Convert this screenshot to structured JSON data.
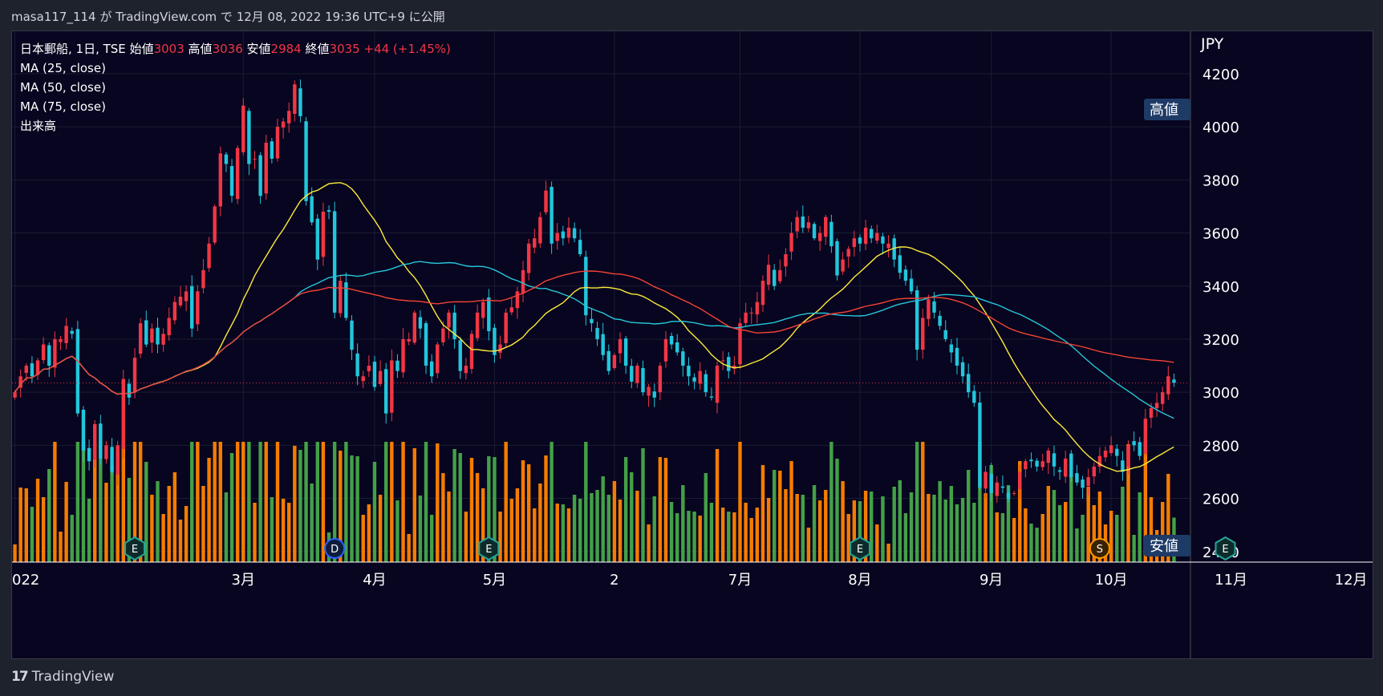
{
  "header": {
    "publish_line": "masa117_114 が TradingView.com で 12月 08, 2022 19:36 UTC+9 に公開"
  },
  "legend": {
    "symbol_line": "日本郵船, 1日, TSE",
    "open_label": "始値",
    "open_value": "3003",
    "high_label": "高値",
    "high_value": "3036",
    "low_label": "安値",
    "low_value": "2984",
    "close_label": "終値",
    "close_value": "3035",
    "change": "+44 (+1.45%)",
    "ma25": "MA (25, close)",
    "ma50": "MA (50, close)",
    "ma75": "MA (75, close)",
    "volume": "出来高"
  },
  "price_axis": {
    "currency": "JPY",
    "high_badge": "高値",
    "low_badge": "安値"
  },
  "footer": {
    "brand": "TradingView"
  },
  "colors": {
    "up": "#f23645",
    "down": "#22c6dc",
    "vol_up": "#f57c00",
    "vol_down": "#43a047",
    "ma25": "#ffeb3b",
    "ma50": "#26c6da",
    "ma75": "#f44336",
    "background": "#07051f"
  },
  "chart_data": {
    "type": "candlestick",
    "title": "日本郵船, 1日, TSE",
    "ylabel": "JPY",
    "ylim": [
      2360,
      4360
    ],
    "yticks": [
      2400,
      2600,
      2800,
      3000,
      3200,
      3400,
      3600,
      3800,
      4000,
      4200
    ],
    "x_labels": [
      {
        "label": "022",
        "index": 0
      },
      {
        "label": "3月",
        "index": 40
      },
      {
        "label": "4月",
        "index": 63
      },
      {
        "label": "5月",
        "index": 84
      },
      {
        "label": "2",
        "index": 105
      },
      {
        "label": "7月",
        "index": 127
      },
      {
        "label": "8月",
        "index": 148
      },
      {
        "label": "9月",
        "index": 171
      },
      {
        "label": "10月",
        "index": 192
      },
      {
        "label": "11月",
        "index": 213
      },
      {
        "label": "12月",
        "index": 234
      }
    ],
    "last_close": 3035,
    "close_series": [
      3000,
      3060,
      3100,
      3060,
      3120,
      3180,
      3100,
      3200,
      3200,
      3250,
      3220,
      2920,
      2780,
      2740,
      2880,
      2750,
      2800,
      2700,
      2800,
      3050,
      2980,
      3130,
      3260,
      3180,
      3240,
      3180,
      3220,
      3280,
      3340,
      3360,
      3380,
      3240,
      3380,
      3460,
      3560,
      3700,
      3900,
      3860,
      3740,
      3920,
      4080,
      3860,
      3880,
      3740,
      3940,
      3880,
      4000,
      4020,
      4060,
      4160,
      4040,
      3720,
      3640,
      3500,
      3680,
      3680,
      3300,
      3420,
      3280,
      3160,
      3060,
      3060,
      3100,
      3020,
      3080,
      2920,
      3120,
      3080,
      3200,
      3200,
      3300,
      3240,
      3100,
      3060,
      3180,
      3240,
      3300,
      3200,
      3080,
      3100,
      3220,
      3300,
      3340,
      3230,
      3140,
      3180,
      3300,
      3320,
      3380,
      3460,
      3560,
      3580,
      3660,
      3760,
      3560,
      3600,
      3580,
      3620,
      3580,
      3520,
      3290,
      3260,
      3200,
      3140,
      3080,
      3140,
      3200,
      3100,
      3040,
      3100,
      3000,
      3020,
      2980,
      3100,
      3200,
      3180,
      3150,
      3100,
      3060,
      3040,
      3080,
      3000,
      2980,
      3100,
      3120,
      3080,
      3100,
      3260,
      3300,
      3300,
      3340,
      3420,
      3480,
      3400,
      3460,
      3520,
      3600,
      3660,
      3620,
      3640,
      3580,
      3600,
      3660,
      3550,
      3440,
      3500,
      3540,
      3580,
      3560,
      3620,
      3580,
      3600,
      3560,
      3560,
      3500,
      3450,
      3420,
      3380,
      3160,
      3280,
      3350,
      3300,
      3250,
      3200,
      3150,
      3100,
      3060,
      3000,
      2960,
      2640,
      2700,
      2620,
      2660,
      2640,
      2600,
      2620,
      2700,
      2740,
      2740,
      2720,
      2740,
      2780,
      2720,
      2700,
      2750,
      2680,
      2660,
      2640,
      2680,
      2720,
      2760,
      2780,
      2800,
      2760,
      2700,
      2800,
      2800,
      2760,
      2900,
      2940,
      2960,
      3000,
      3060,
      3035
    ]
  }
}
